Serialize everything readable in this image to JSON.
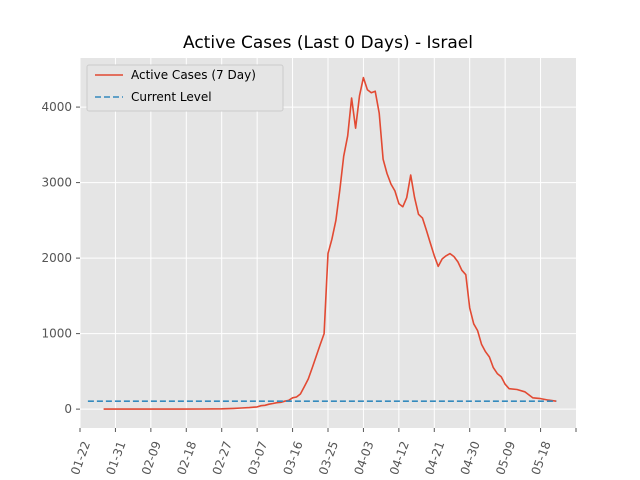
{
  "chart_data": {
    "type": "line",
    "title": "Active Cases (Last 0 Days) - Israel",
    "xlabel": "",
    "ylabel": "",
    "xlim": [
      "2020-01-22",
      "2020-05-27"
    ],
    "ylim": [
      -250,
      4650
    ],
    "x_ticks": [
      "01-22",
      "01-31",
      "02-09",
      "02-18",
      "02-27",
      "03-07",
      "03-16",
      "03-25",
      "04-03",
      "04-12",
      "04-21",
      "04-30",
      "05-09",
      "05-18"
    ],
    "y_ticks": [
      "0",
      "1000",
      "2000",
      "3000",
      "4000"
    ],
    "y_tick_values": [
      0,
      1000,
      2000,
      3000,
      4000
    ],
    "grid": true,
    "legend": {
      "placement": "upper-left",
      "entries": [
        "Active Cases (7 Day)",
        "Current Level"
      ]
    },
    "colors": {
      "active": "#E24A33",
      "current": "#348ABD",
      "axes_bg": "#E5E5E5",
      "grid": "#FFFFFF"
    },
    "series": [
      {
        "name": "Active Cases (7 Day)",
        "style": "solid",
        "points": [
          [
            "2020-01-28",
            0
          ],
          [
            "2020-02-02",
            0
          ],
          [
            "2020-02-07",
            0
          ],
          [
            "2020-02-12",
            0
          ],
          [
            "2020-02-17",
            0
          ],
          [
            "2020-02-22",
            1
          ],
          [
            "2020-02-27",
            4
          ],
          [
            "2020-03-01",
            10
          ],
          [
            "2020-03-03",
            15
          ],
          [
            "2020-03-05",
            20
          ],
          [
            "2020-03-07",
            30
          ],
          [
            "2020-03-08",
            45
          ],
          [
            "2020-03-09",
            50
          ],
          [
            "2020-03-10",
            65
          ],
          [
            "2020-03-11",
            75
          ],
          [
            "2020-03-12",
            85
          ],
          [
            "2020-03-13",
            90
          ],
          [
            "2020-03-14",
            105
          ],
          [
            "2020-03-15",
            115
          ],
          [
            "2020-03-16",
            150
          ],
          [
            "2020-03-17",
            160
          ],
          [
            "2020-03-18",
            200
          ],
          [
            "2020-03-19",
            300
          ],
          [
            "2020-03-20",
            400
          ],
          [
            "2020-03-21",
            550
          ],
          [
            "2020-03-22",
            700
          ],
          [
            "2020-03-23",
            850
          ],
          [
            "2020-03-24",
            1000
          ],
          [
            "2020-03-25",
            2060
          ],
          [
            "2020-03-26",
            2250
          ],
          [
            "2020-03-27",
            2500
          ],
          [
            "2020-03-28",
            2900
          ],
          [
            "2020-03-29",
            3350
          ],
          [
            "2020-03-30",
            3620
          ],
          [
            "2020-03-31",
            4120
          ],
          [
            "2020-04-01",
            3720
          ],
          [
            "2020-04-02",
            4150
          ],
          [
            "2020-04-03",
            4390
          ],
          [
            "2020-04-04",
            4230
          ],
          [
            "2020-04-05",
            4190
          ],
          [
            "2020-04-06",
            4210
          ],
          [
            "2020-04-07",
            3920
          ],
          [
            "2020-04-08",
            3310
          ],
          [
            "2020-04-09",
            3120
          ],
          [
            "2020-04-10",
            2980
          ],
          [
            "2020-04-11",
            2890
          ],
          [
            "2020-04-12",
            2720
          ],
          [
            "2020-04-13",
            2680
          ],
          [
            "2020-04-14",
            2800
          ],
          [
            "2020-04-15",
            3100
          ],
          [
            "2020-04-16",
            2800
          ],
          [
            "2020-04-17",
            2580
          ],
          [
            "2020-04-18",
            2530
          ],
          [
            "2020-04-19",
            2370
          ],
          [
            "2020-04-20",
            2200
          ],
          [
            "2020-04-21",
            2030
          ],
          [
            "2020-04-22",
            1890
          ],
          [
            "2020-04-23",
            1990
          ],
          [
            "2020-04-24",
            2030
          ],
          [
            "2020-04-25",
            2060
          ],
          [
            "2020-04-26",
            2020
          ],
          [
            "2020-04-27",
            1950
          ],
          [
            "2020-04-28",
            1840
          ],
          [
            "2020-04-29",
            1780
          ],
          [
            "2020-04-30",
            1340
          ],
          [
            "2020-05-01",
            1130
          ],
          [
            "2020-05-02",
            1040
          ],
          [
            "2020-05-03",
            860
          ],
          [
            "2020-05-04",
            760
          ],
          [
            "2020-05-05",
            690
          ],
          [
            "2020-05-06",
            550
          ],
          [
            "2020-05-07",
            470
          ],
          [
            "2020-05-08",
            430
          ],
          [
            "2020-05-09",
            330
          ],
          [
            "2020-05-10",
            270
          ],
          [
            "2020-05-12",
            260
          ],
          [
            "2020-05-14",
            230
          ],
          [
            "2020-05-16",
            150
          ],
          [
            "2020-05-18",
            140
          ],
          [
            "2020-05-20",
            120
          ],
          [
            "2020-05-22",
            105
          ]
        ]
      },
      {
        "name": "Current Level",
        "style": "dashed",
        "points": [
          [
            "2020-01-24",
            105
          ],
          [
            "2020-05-22",
            105
          ]
        ]
      }
    ]
  }
}
